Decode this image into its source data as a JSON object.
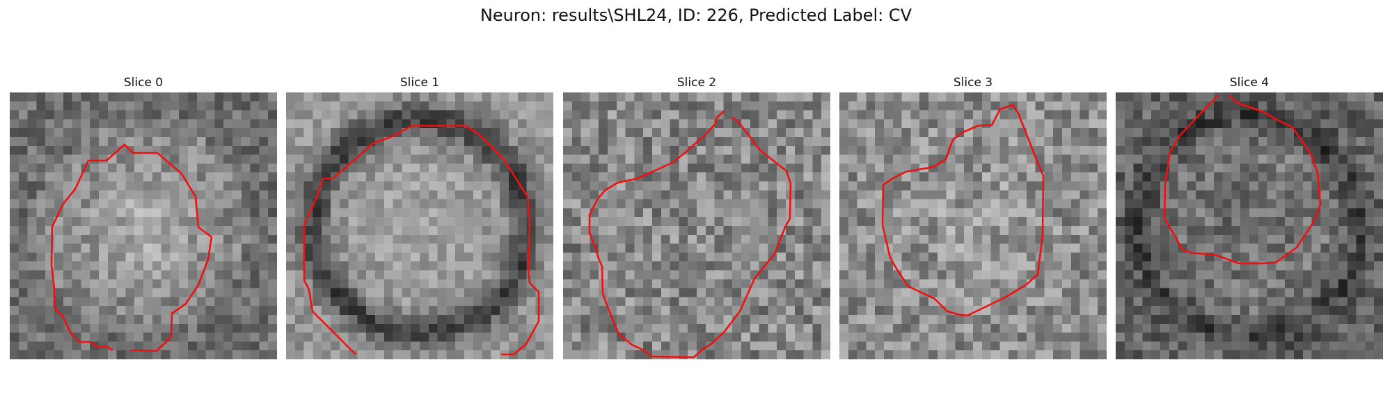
{
  "figure": {
    "title": "Neuron: results\\SHL24, ID: 226, Predicted Label: CV"
  },
  "panels": [
    {
      "title": "Slice 0",
      "image": "grayscale-em-patch",
      "contour_color": "#ee1111"
    },
    {
      "title": "Slice 1",
      "image": "grayscale-em-patch",
      "contour_color": "#ee1111"
    },
    {
      "title": "Slice 2",
      "image": "grayscale-em-patch",
      "contour_color": "#ee1111"
    },
    {
      "title": "Slice 3",
      "image": "grayscale-em-patch",
      "contour_color": "#ee1111"
    },
    {
      "title": "Slice 4",
      "image": "grayscale-em-patch",
      "contour_color": "#ee1111"
    }
  ]
}
